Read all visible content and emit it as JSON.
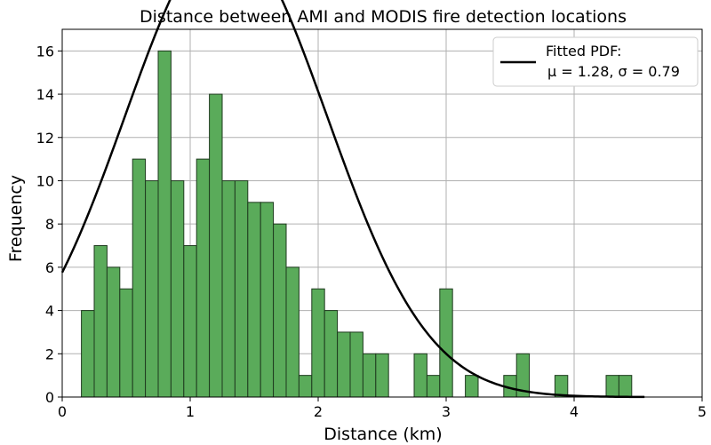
{
  "chart_data": {
    "type": "bar",
    "title": "Distance between AMI and MODIS fire detection locations",
    "xlabel": "Distance (km)",
    "ylabel": "Frequency",
    "xlim": [
      0,
      5
    ],
    "ylim": [
      0,
      17
    ],
    "xticks": [
      0,
      1,
      2,
      3,
      4,
      5
    ],
    "yticks": [
      0,
      2,
      4,
      6,
      8,
      10,
      12,
      14,
      16
    ],
    "grid": true,
    "legend": {
      "placement": "top-right",
      "line1": "Fitted PDF:",
      "line2": "μ = 1.28, σ = 0.79"
    },
    "bins": {
      "start": 0.15,
      "width": 0.1,
      "counts": [
        4,
        7,
        6,
        5,
        11,
        10,
        16,
        10,
        7,
        11,
        14,
        10,
        10,
        9,
        9,
        8,
        6,
        1,
        5,
        4,
        3,
        3,
        2,
        2,
        0,
        0,
        2,
        1,
        5,
        0,
        1,
        0,
        0,
        1,
        2,
        0,
        0,
        1,
        0,
        0,
        0,
        1,
        1
      ]
    },
    "series": [
      {
        "name": "Fitted PDF:",
        "type": "line",
        "mu": 1.28,
        "sigma": 0.79,
        "scale": 21.4,
        "x_range": [
          0,
          4.55
        ]
      }
    ],
    "colors": {
      "bar_fill": "#5aab5a",
      "bar_edge": "#1e3a1e",
      "line": "#000000",
      "grid": "#b0b0b0"
    }
  }
}
